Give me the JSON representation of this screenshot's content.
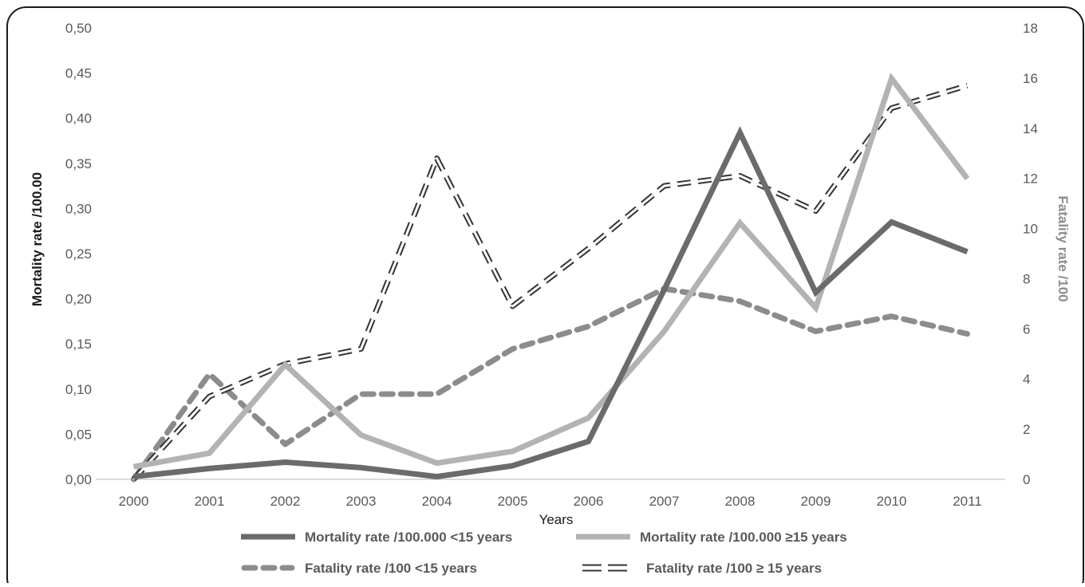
{
  "chart_data": {
    "type": "line",
    "x": [
      "2000",
      "2001",
      "2002",
      "2003",
      "2004",
      "2005",
      "2006",
      "2007",
      "2008",
      "2009",
      "2010",
      "2011"
    ],
    "xlabel": "Years",
    "ylabel": "Mortality rate /100.00",
    "y2label": "Fatality rate /100",
    "ylim": [
      0,
      0.5
    ],
    "y2lim": [
      0,
      18
    ],
    "yticks": [
      "0,00",
      "0,05",
      "0,10",
      "0,15",
      "0,20",
      "0,25",
      "0,30",
      "0,35",
      "0,40",
      "0,45",
      "0,50"
    ],
    "y2ticks": [
      "0",
      "2",
      "4",
      "6",
      "8",
      "10",
      "12",
      "14",
      "16",
      "18"
    ],
    "grid": false,
    "legend_position": "bottom",
    "series": [
      {
        "name": "Mortality rate /100.000 <15 years",
        "axis": "left",
        "style": "solid-dark",
        "color": "#6b6b6b",
        "values": [
          0.003,
          0.012,
          0.019,
          0.013,
          0.003,
          0.015,
          0.042,
          0.21,
          0.384,
          0.207,
          0.285,
          0.252
        ]
      },
      {
        "name": "Mortality rate /100.000 ≥15 years",
        "axis": "left",
        "style": "solid-light",
        "color": "#b3b3b3",
        "values": [
          0.014,
          0.029,
          0.127,
          0.049,
          0.018,
          0.031,
          0.068,
          0.164,
          0.284,
          0.19,
          0.444,
          0.333
        ]
      },
      {
        "name": "Fatality rate /100 <15 years",
        "axis": "right",
        "style": "dashed-grey",
        "color": "#8c8c8c",
        "values": [
          0.0,
          4.2,
          1.4,
          3.4,
          3.4,
          5.2,
          6.1,
          7.6,
          7.1,
          5.9,
          6.5,
          5.8
        ]
      },
      {
        "name": "Fatality rate /100 ≥ 15 years",
        "axis": "right",
        "style": "hollow-dashed",
        "color": "#333333",
        "values": [
          0.0,
          3.3,
          4.6,
          5.2,
          12.8,
          6.9,
          9.2,
          11.7,
          12.1,
          10.7,
          14.8,
          15.7
        ]
      }
    ]
  }
}
